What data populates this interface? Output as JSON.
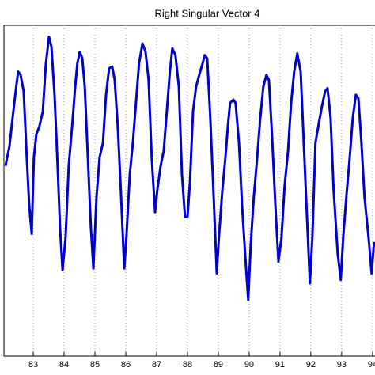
{
  "chart_data": {
    "type": "line",
    "title": "Right Singular Vector 4",
    "x": [
      82.1,
      82.23,
      82.33,
      82.43,
      82.51,
      82.59,
      82.69,
      82.79,
      82.87,
      82.95,
      83.02,
      83.1,
      83.2,
      83.31,
      83.41,
      83.51,
      83.59,
      83.69,
      83.79,
      83.87,
      83.95,
      84.05,
      84.15,
      84.26,
      84.36,
      84.43,
      84.51,
      84.59,
      84.67,
      84.77,
      84.87,
      84.95,
      85.05,
      85.15,
      85.26,
      85.36,
      85.46,
      85.56,
      85.64,
      85.74,
      85.84,
      85.95,
      86.02,
      86.13,
      86.23,
      86.33,
      86.43,
      86.54,
      86.64,
      86.74,
      86.84,
      86.95,
      87.02,
      87.13,
      87.23,
      87.33,
      87.43,
      87.51,
      87.61,
      87.72,
      87.82,
      87.92,
      88.0,
      88.08,
      88.18,
      88.28,
      88.38,
      88.49,
      88.56,
      88.64,
      88.74,
      88.85,
      88.95,
      89.02,
      89.13,
      89.23,
      89.31,
      89.38,
      89.49,
      89.56,
      89.67,
      89.77,
      89.9,
      89.97,
      90.05,
      90.15,
      90.26,
      90.36,
      90.46,
      90.56,
      90.64,
      90.74,
      90.85,
      90.95,
      91.05,
      91.15,
      91.26,
      91.36,
      91.46,
      91.56,
      91.67,
      91.77,
      91.87,
      91.97,
      92.05,
      92.15,
      92.26,
      92.36,
      92.46,
      92.54,
      92.64,
      92.74,
      92.87,
      92.97,
      93.05,
      93.15,
      93.26,
      93.36,
      93.46,
      93.54,
      93.64,
      93.74,
      93.87,
      93.97,
      94.05
    ],
    "series": [
      {
        "color": "#0000cc",
        "values": [
          0.15,
          0.27,
          0.44,
          0.6,
          0.72,
          0.7,
          0.6,
          0.2,
          -0.09,
          -0.26,
          0.2,
          0.34,
          0.39,
          0.48,
          0.77,
          0.93,
          0.87,
          0.58,
          0.15,
          -0.23,
          -0.48,
          -0.28,
          0.15,
          0.39,
          0.63,
          0.77,
          0.84,
          0.8,
          0.63,
          0.2,
          -0.23,
          -0.47,
          -0.04,
          0.2,
          0.29,
          0.58,
          0.74,
          0.75,
          0.67,
          0.39,
          0.0,
          -0.47,
          -0.28,
          0.1,
          0.29,
          0.53,
          0.77,
          0.89,
          0.84,
          0.67,
          0.2,
          -0.13,
          0.0,
          0.15,
          0.24,
          0.48,
          0.72,
          0.86,
          0.82,
          0.63,
          0.1,
          -0.16,
          -0.16,
          0.05,
          0.48,
          0.63,
          0.7,
          0.77,
          0.82,
          0.8,
          0.44,
          -0.04,
          -0.5,
          -0.28,
          0.0,
          0.2,
          0.39,
          0.53,
          0.55,
          0.53,
          0.29,
          -0.09,
          -0.47,
          -0.66,
          -0.33,
          -0.04,
          0.2,
          0.44,
          0.63,
          0.7,
          0.67,
          0.34,
          -0.09,
          -0.43,
          -0.28,
          0.03,
          0.24,
          0.53,
          0.72,
          0.83,
          0.72,
          0.29,
          -0.14,
          -0.56,
          -0.28,
          0.29,
          0.41,
          0.51,
          0.6,
          0.62,
          0.44,
          0.0,
          -0.38,
          -0.54,
          -0.28,
          -0.04,
          0.2,
          0.44,
          0.58,
          0.56,
          0.29,
          -0.04,
          -0.28,
          -0.5,
          -0.31
        ]
      }
    ],
    "xlim": [
      82.05,
      94.08
    ],
    "ylim": [
      -1,
      1
    ],
    "xticks": [
      83,
      84,
      85,
      86,
      87,
      88,
      89,
      90,
      91,
      92,
      93,
      94
    ],
    "grid": true
  }
}
